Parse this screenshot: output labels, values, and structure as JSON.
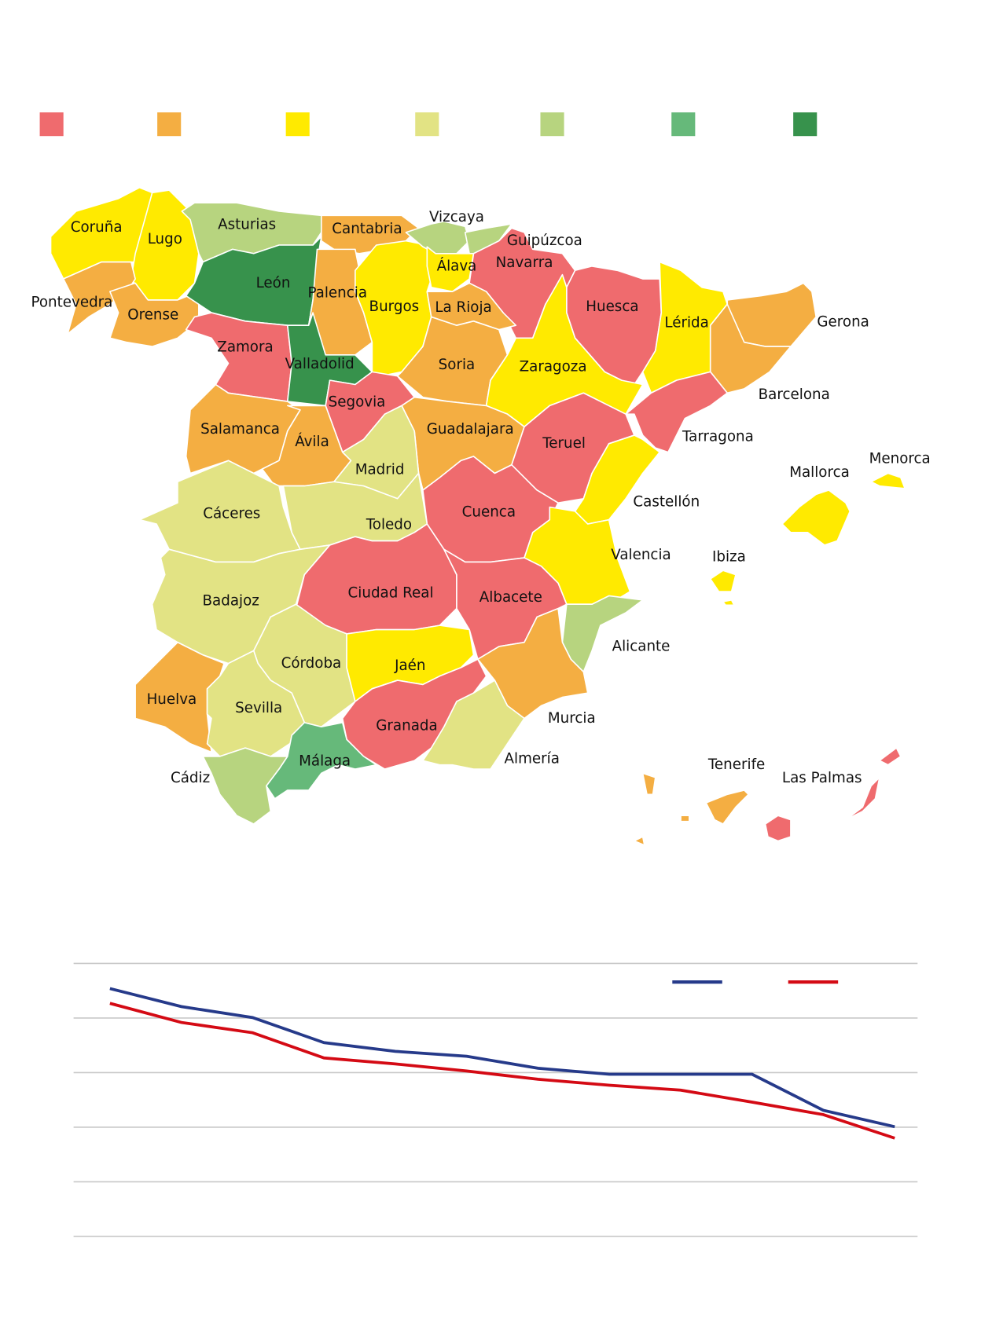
{
  "legend": {
    "swatches": [
      {
        "color": "#ef6b6e"
      },
      {
        "color": "#f4ae42"
      },
      {
        "color": "#ffea00"
      },
      {
        "color": "#e2e384"
      },
      {
        "color": "#b7d47f"
      },
      {
        "color": "#66b97a"
      },
      {
        "color": "#37924c"
      }
    ]
  },
  "provinces": [
    {
      "name": "Coruña",
      "cat": 2
    },
    {
      "name": "Lugo",
      "cat": 2
    },
    {
      "name": "Pontevedra",
      "cat": 1
    },
    {
      "name": "Orense",
      "cat": 1
    },
    {
      "name": "Asturias",
      "cat": 4
    },
    {
      "name": "Cantabria",
      "cat": 1
    },
    {
      "name": "León",
      "cat": 6
    },
    {
      "name": "Palencia",
      "cat": 1
    },
    {
      "name": "Zamora",
      "cat": 0
    },
    {
      "name": "Valladolid",
      "cat": 6
    },
    {
      "name": "Burgos",
      "cat": 2
    },
    {
      "name": "Vizcaya",
      "cat": 4
    },
    {
      "name": "Guipúzcoa",
      "cat": 4
    },
    {
      "name": "Álava",
      "cat": 2
    },
    {
      "name": "Navarra",
      "cat": 0
    },
    {
      "name": "La Rioja",
      "cat": 1
    },
    {
      "name": "Soria",
      "cat": 1
    },
    {
      "name": "Huesca",
      "cat": 0
    },
    {
      "name": "Zaragoza",
      "cat": 2
    },
    {
      "name": "Lérida",
      "cat": 2
    },
    {
      "name": "Gerona",
      "cat": 1
    },
    {
      "name": "Barcelona",
      "cat": 1
    },
    {
      "name": "Tarragona",
      "cat": 0
    },
    {
      "name": "Segovia",
      "cat": 0
    },
    {
      "name": "Salamanca",
      "cat": 1
    },
    {
      "name": "Ávila",
      "cat": 1
    },
    {
      "name": "Guadalajara",
      "cat": 1
    },
    {
      "name": "Madrid",
      "cat": 3
    },
    {
      "name": "Teruel",
      "cat": 0
    },
    {
      "name": "Castellón",
      "cat": 2
    },
    {
      "name": "Cuenca",
      "cat": 0
    },
    {
      "name": "Cáceres",
      "cat": 3
    },
    {
      "name": "Toledo",
      "cat": 3
    },
    {
      "name": "Valencia",
      "cat": 2
    },
    {
      "name": "Badajoz",
      "cat": 3
    },
    {
      "name": "Ciudad Real",
      "cat": 0
    },
    {
      "name": "Albacete",
      "cat": 0
    },
    {
      "name": "Alicante",
      "cat": 4
    },
    {
      "name": "Murcia",
      "cat": 1
    },
    {
      "name": "Córdoba",
      "cat": 3
    },
    {
      "name": "Jaén",
      "cat": 2
    },
    {
      "name": "Granada",
      "cat": 0
    },
    {
      "name": "Almería",
      "cat": 3
    },
    {
      "name": "Huelva",
      "cat": 1
    },
    {
      "name": "Sevilla",
      "cat": 3
    },
    {
      "name": "Cádiz",
      "cat": 4
    },
    {
      "name": "Málaga",
      "cat": 5
    },
    {
      "name": "Mallorca",
      "cat": 2
    },
    {
      "name": "Menorca",
      "cat": 2
    },
    {
      "name": "Ibiza",
      "cat": 2
    },
    {
      "name": "Tenerife",
      "cat": 1
    },
    {
      "name": "Las Palmas",
      "cat": 0
    }
  ],
  "chart_data": {
    "type": "line",
    "title": "",
    "xlabel": "",
    "ylabel": "",
    "x": [
      1,
      2,
      3,
      4,
      5,
      6,
      7,
      8,
      9,
      10,
      11,
      12
    ],
    "ylim": [
      0,
      5
    ],
    "grid": true,
    "series": [
      {
        "name": "",
        "color": "#263a8a",
        "values": [
          4.54,
          4.21,
          4.01,
          3.55,
          3.39,
          3.3,
          3.08,
          2.97,
          2.97,
          2.97,
          2.31,
          2.01
        ]
      },
      {
        "name": "",
        "color": "#d40a14",
        "values": [
          4.27,
          3.92,
          3.73,
          3.27,
          3.16,
          3.03,
          2.88,
          2.77,
          2.68,
          2.46,
          2.23,
          1.8
        ]
      }
    ],
    "legend": "top-right"
  }
}
